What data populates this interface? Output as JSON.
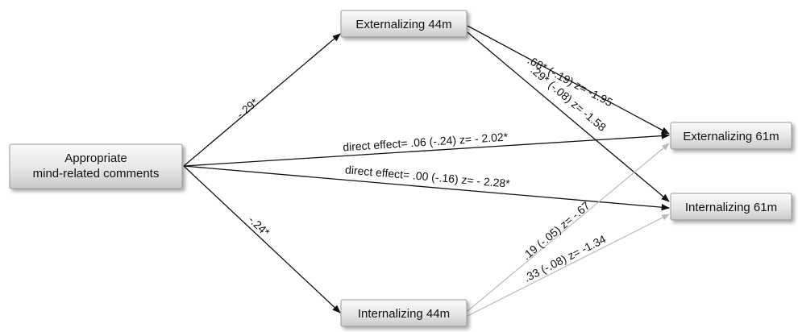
{
  "nodes": {
    "comments": {
      "lines": [
        "Appropriate",
        "mind-related comments"
      ]
    },
    "ext44": {
      "label": "Externalizing 44m"
    },
    "int44": {
      "label": "Internalizing 44m"
    },
    "ext61": {
      "label": "Externalizing 61m"
    },
    "int61": {
      "label": "Internalizing 61m"
    }
  },
  "paths": {
    "comments_to_ext44": "-.29*",
    "comments_to_int44": "-.24*",
    "direct_ext61": "direct effect= .06 (-.24)  z= - 2.02*",
    "direct_int61": "direct effect= .00 (-.16) z= - 2.28*",
    "ext44_to_ext61": ".68* (-.19) z= -1.95",
    "ext44_to_int61": ".29* (-.08) z= -1.58",
    "int44_to_ext61": ".19 (-.05) z= -.67",
    "int44_to_int61": ".33 (-.08) z= -1.34"
  }
}
